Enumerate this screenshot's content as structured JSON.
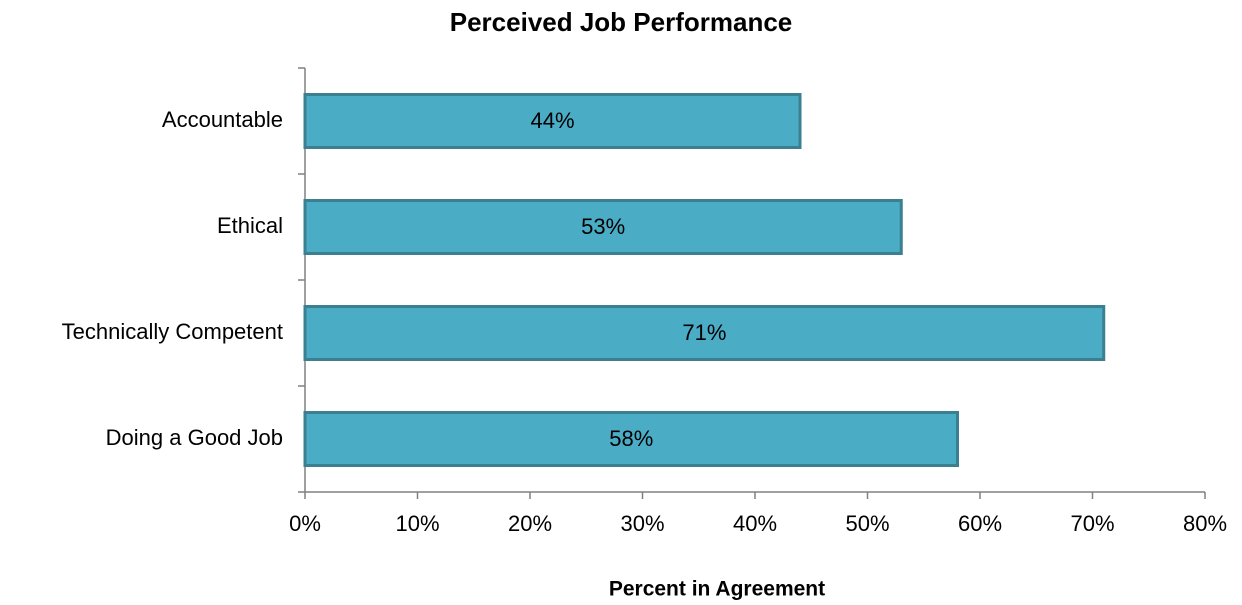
{
  "chart_data": {
    "type": "bar",
    "orientation": "horizontal",
    "title": "Perceived Job Performance",
    "x_label": "Percent in Agreement",
    "categories": [
      "Accountable",
      "Ethical",
      "Technically Competent",
      "Doing a Good Job"
    ],
    "values": [
      44,
      53,
      71,
      58
    ],
    "value_labels": [
      "44%",
      "53%",
      "71%",
      "58%"
    ],
    "color": "#4bacc6",
    "xlim": [
      0,
      80
    ],
    "xticks": [
      {
        "value": 0,
        "label": "0%"
      },
      {
        "value": 10,
        "label": "10%"
      },
      {
        "value": 20,
        "label": "20%"
      },
      {
        "value": 30,
        "label": "30%"
      },
      {
        "value": 40,
        "label": "40%"
      },
      {
        "value": 50,
        "label": "50%"
      },
      {
        "value": 60,
        "label": "60%"
      },
      {
        "value": 70,
        "label": "70%"
      },
      {
        "value": 80,
        "label": "80%"
      }
    ],
    "grid": false
  }
}
